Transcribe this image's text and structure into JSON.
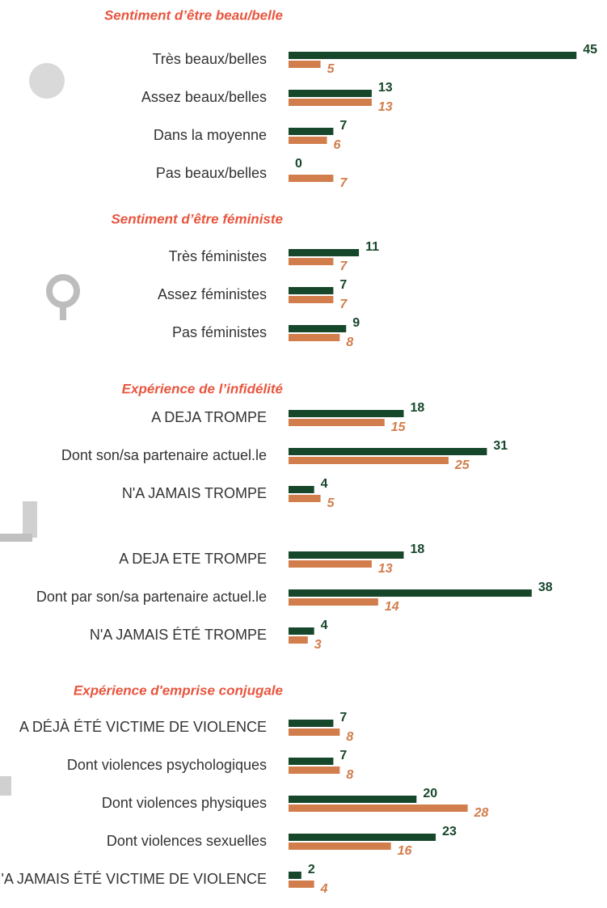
{
  "chart_data": [
    {
      "type": "hbar",
      "title": "Sentiment d’être beau/belle",
      "categories": [
        "Très beaux/belles",
        "Assez beaux/belles",
        "Dans la moyenne",
        "Pas beaux/belles"
      ],
      "series": [
        {
          "color": "#17472b",
          "values": [
            45,
            13,
            7,
            0
          ]
        },
        {
          "color": "#d27d4c",
          "values": [
            5,
            13,
            6,
            7
          ]
        }
      ],
      "xlim": [
        0,
        48
      ]
    },
    {
      "type": "hbar",
      "title": "Sentiment d’être féministe",
      "categories": [
        "Très féministes",
        "Assez féministes",
        "Pas féministes"
      ],
      "series": [
        {
          "color": "#17472b",
          "values": [
            11,
            7,
            9
          ]
        },
        {
          "color": "#d27d4c",
          "values": [
            7,
            7,
            8
          ]
        }
      ],
      "xlim": [
        0,
        48
      ]
    },
    {
      "type": "hbar",
      "title": "Expérience de l’infidélité",
      "categories": [
        "A DEJA TROMPE",
        "Dont son/sa partenaire actuel.le",
        "N'A JAMAIS TROMPE"
      ],
      "series": [
        {
          "color": "#17472b",
          "values": [
            18,
            31,
            4
          ]
        },
        {
          "color": "#d27d4c",
          "values": [
            15,
            25,
            5
          ]
        }
      ],
      "xlim": [
        0,
        48
      ]
    },
    {
      "type": "hbar",
      "categories": [
        "A DEJA ETE TROMPE",
        "Dont par son/sa partenaire actuel.le",
        "N'A JAMAIS ÉTÉ TROMPE"
      ],
      "series": [
        {
          "color": "#17472b",
          "values": [
            18,
            38,
            4
          ]
        },
        {
          "color": "#d27d4c",
          "values": [
            13,
            14,
            3
          ]
        }
      ],
      "xlim": [
        0,
        48
      ]
    },
    {
      "type": "hbar",
      "title": "Expérience d'emprise conjugale",
      "categories": [
        "A DÉJÀ ÉTÉ VICTIME DE VIOLENCE",
        "Dont violences psychologiques",
        "Dont violences physiques",
        "Dont violences sexuelles",
        "N'A JAMAIS ÉTÉ VICTIME DE VIOLENCE"
      ],
      "series": [
        {
          "color": "#17472b",
          "values": [
            7,
            7,
            20,
            23,
            2
          ]
        },
        {
          "color": "#d27d4c",
          "values": [
            8,
            8,
            28,
            16,
            4
          ]
        }
      ],
      "xlim": [
        0,
        48
      ]
    }
  ]
}
